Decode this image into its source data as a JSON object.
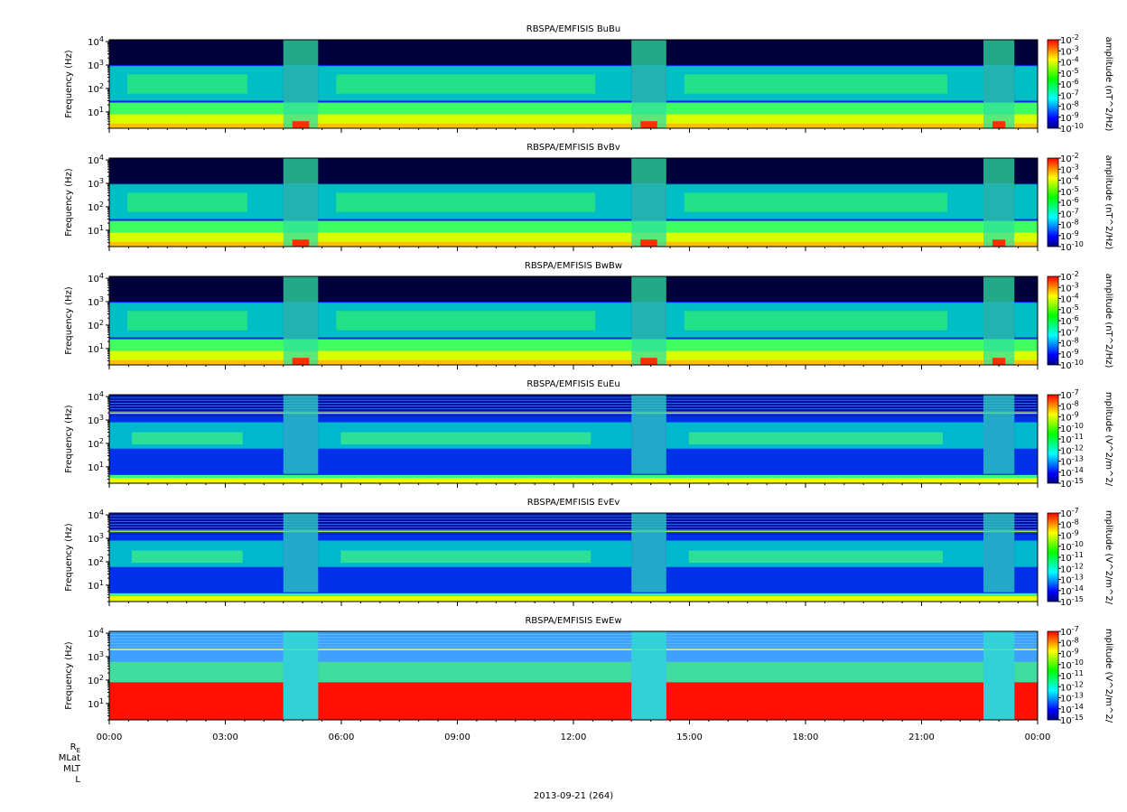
{
  "figure": {
    "date_label": "2013-09-21 (264)",
    "ephemeris_labels": [
      {
        "main": "R",
        "sub": "E"
      },
      {
        "main": "MLat",
        "sub": ""
      },
      {
        "main": "MLT",
        "sub": ""
      },
      {
        "main": "L",
        "sub": ""
      }
    ]
  },
  "chart_data": [
    {
      "type": "heatmap",
      "title": "RBSPA/EMFISIS  BuBu",
      "ylabel": "Frequency (Hz)",
      "yscale": "log",
      "ylim": [
        2,
        12000
      ],
      "yticks": [
        {
          "base": "10",
          "exp": "1"
        },
        {
          "base": "10",
          "exp": "2"
        },
        {
          "base": "10",
          "exp": "3"
        },
        {
          "base": "10",
          "exp": "4"
        }
      ],
      "colorbar": {
        "label": "amplitude (nT^2/Hz)",
        "scale": "log",
        "range": [
          -10,
          -2
        ],
        "ticks": [
          {
            "base": "10",
            "exp": "-2"
          },
          {
            "base": "10",
            "exp": "-3"
          },
          {
            "base": "10",
            "exp": "-4"
          },
          {
            "base": "10",
            "exp": "-5"
          },
          {
            "base": "10",
            "exp": "-6"
          },
          {
            "base": "10",
            "exp": "-7"
          },
          {
            "base": "10",
            "exp": "-8"
          },
          {
            "base": "10",
            "exp": "-9"
          },
          {
            "base": "10",
            "exp": "-10"
          }
        ]
      },
      "field": "magnetic"
    },
    {
      "type": "heatmap",
      "title": "RBSPA/EMFISIS  BvBv",
      "ylabel": "Frequency (Hz)",
      "yscale": "log",
      "ylim": [
        2,
        12000
      ],
      "yticks": [
        {
          "base": "10",
          "exp": "1"
        },
        {
          "base": "10",
          "exp": "2"
        },
        {
          "base": "10",
          "exp": "3"
        },
        {
          "base": "10",
          "exp": "4"
        }
      ],
      "colorbar": {
        "label": "amplitude (nT^2/Hz)",
        "scale": "log",
        "range": [
          -10,
          -2
        ],
        "ticks": [
          {
            "base": "10",
            "exp": "-2"
          },
          {
            "base": "10",
            "exp": "-3"
          },
          {
            "base": "10",
            "exp": "-4"
          },
          {
            "base": "10",
            "exp": "-5"
          },
          {
            "base": "10",
            "exp": "-6"
          },
          {
            "base": "10",
            "exp": "-7"
          },
          {
            "base": "10",
            "exp": "-8"
          },
          {
            "base": "10",
            "exp": "-9"
          },
          {
            "base": "10",
            "exp": "-10"
          }
        ]
      },
      "field": "magnetic"
    },
    {
      "type": "heatmap",
      "title": "RBSPA/EMFISIS  BwBw",
      "ylabel": "Frequency (Hz)",
      "yscale": "log",
      "ylim": [
        2,
        12000
      ],
      "yticks": [
        {
          "base": "10",
          "exp": "1"
        },
        {
          "base": "10",
          "exp": "2"
        },
        {
          "base": "10",
          "exp": "3"
        },
        {
          "base": "10",
          "exp": "4"
        }
      ],
      "colorbar": {
        "label": "amplitude (nT^2/Hz)",
        "scale": "log",
        "range": [
          -10,
          -2
        ],
        "ticks": [
          {
            "base": "10",
            "exp": "-2"
          },
          {
            "base": "10",
            "exp": "-3"
          },
          {
            "base": "10",
            "exp": "-4"
          },
          {
            "base": "10",
            "exp": "-5"
          },
          {
            "base": "10",
            "exp": "-6"
          },
          {
            "base": "10",
            "exp": "-7"
          },
          {
            "base": "10",
            "exp": "-8"
          },
          {
            "base": "10",
            "exp": "-9"
          },
          {
            "base": "10",
            "exp": "-10"
          }
        ]
      },
      "field": "magnetic"
    },
    {
      "type": "heatmap",
      "title": "RBSPA/EMFISIS  EuEu",
      "ylabel": "Frequency (Hz)",
      "yscale": "log",
      "ylim": [
        2,
        12000
      ],
      "yticks": [
        {
          "base": "10",
          "exp": "1"
        },
        {
          "base": "10",
          "exp": "2"
        },
        {
          "base": "10",
          "exp": "3"
        },
        {
          "base": "10",
          "exp": "4"
        }
      ],
      "colorbar": {
        "label": "mplitude (V^2/m^2/",
        "scale": "log",
        "range": [
          -15,
          -7
        ],
        "ticks": [
          {
            "base": "10",
            "exp": "-7"
          },
          {
            "base": "10",
            "exp": "-8"
          },
          {
            "base": "10",
            "exp": "-9"
          },
          {
            "base": "10",
            "exp": "-10"
          },
          {
            "base": "10",
            "exp": "-11"
          },
          {
            "base": "10",
            "exp": "-12"
          },
          {
            "base": "10",
            "exp": "-13"
          },
          {
            "base": "10",
            "exp": "-14"
          },
          {
            "base": "10",
            "exp": "-15"
          }
        ]
      },
      "field": "electric"
    },
    {
      "type": "heatmap",
      "title": "RBSPA/EMFISIS  EvEv",
      "ylabel": "Frequency (Hz)",
      "yscale": "log",
      "ylim": [
        2,
        12000
      ],
      "yticks": [
        {
          "base": "10",
          "exp": "1"
        },
        {
          "base": "10",
          "exp": "2"
        },
        {
          "base": "10",
          "exp": "3"
        },
        {
          "base": "10",
          "exp": "4"
        }
      ],
      "colorbar": {
        "label": "mplitude (V^2/m^2/",
        "scale": "log",
        "range": [
          -15,
          -7
        ],
        "ticks": [
          {
            "base": "10",
            "exp": "-7"
          },
          {
            "base": "10",
            "exp": "-8"
          },
          {
            "base": "10",
            "exp": "-9"
          },
          {
            "base": "10",
            "exp": "-10"
          },
          {
            "base": "10",
            "exp": "-11"
          },
          {
            "base": "10",
            "exp": "-12"
          },
          {
            "base": "10",
            "exp": "-13"
          },
          {
            "base": "10",
            "exp": "-14"
          },
          {
            "base": "10",
            "exp": "-15"
          }
        ]
      },
      "field": "electric"
    },
    {
      "type": "heatmap",
      "title": "RBSPA/EMFISIS  EwEw",
      "ylabel": "Frequency (Hz)",
      "yscale": "log",
      "ylim": [
        2,
        12000
      ],
      "yticks": [
        {
          "base": "10",
          "exp": "1"
        },
        {
          "base": "10",
          "exp": "2"
        },
        {
          "base": "10",
          "exp": "3"
        },
        {
          "base": "10",
          "exp": "4"
        }
      ],
      "colorbar": {
        "label": "mplitude (V^2/m^2/",
        "scale": "log",
        "range": [
          -15,
          -7
        ],
        "ticks": [
          {
            "base": "10",
            "exp": "-7"
          },
          {
            "base": "10",
            "exp": "-8"
          },
          {
            "base": "10",
            "exp": "-9"
          },
          {
            "base": "10",
            "exp": "-10"
          },
          {
            "base": "10",
            "exp": "-11"
          },
          {
            "base": "10",
            "exp": "-12"
          },
          {
            "base": "10",
            "exp": "-13"
          },
          {
            "base": "10",
            "exp": "-14"
          },
          {
            "base": "10",
            "exp": "-15"
          }
        ]
      },
      "field": "electric_w"
    }
  ],
  "time_axis": {
    "xlim": [
      "00:00",
      "24:00"
    ],
    "major_ticks": [
      {
        "hour": 0,
        "label": "00:00"
      },
      {
        "hour": 3,
        "label": "03:00"
      },
      {
        "hour": 6,
        "label": "06:00"
      },
      {
        "hour": 9,
        "label": "09:00"
      },
      {
        "hour": 12,
        "label": "12:00"
      },
      {
        "hour": 15,
        "label": "15:00"
      },
      {
        "hour": 18,
        "label": "18:00"
      },
      {
        "hour": 21,
        "label": "21:00"
      },
      {
        "hour": 24,
        "label": "00:00"
      }
    ],
    "minor_tick_interval_hours": 0.5
  },
  "colormap": [
    "#000080",
    "#0000ff",
    "#0080ff",
    "#00ffff",
    "#00ff80",
    "#00ff00",
    "#80ff00",
    "#ffff00",
    "#ff8000",
    "#ff0000"
  ],
  "spectral_features": [
    {
      "name": "perigee-crossing",
      "start_hour": 4.5,
      "end_hour": 5.4
    },
    {
      "name": "perigee-crossing",
      "start_hour": 13.5,
      "end_hour": 14.4
    },
    {
      "name": "perigee-crossing",
      "start_hour": 22.6,
      "end_hour": 23.4
    },
    {
      "name": "hiss-band",
      "start_hour": 0.0,
      "end_hour": 4.5
    },
    {
      "name": "hiss-band",
      "start_hour": 5.4,
      "end_hour": 13.5
    },
    {
      "name": "hiss-band",
      "start_hour": 14.4,
      "end_hour": 22.6
    },
    {
      "name": "hiss-band",
      "start_hour": 23.4,
      "end_hour": 24.0
    }
  ]
}
